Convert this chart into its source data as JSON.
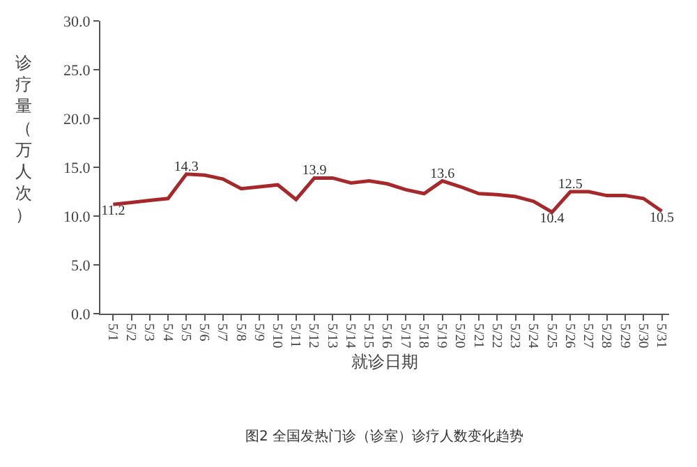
{
  "chart_data": {
    "type": "line",
    "xlabel": "就诊日期",
    "ylabel": "诊疗量（万人次）",
    "categories": [
      "5/1",
      "5/2",
      "5/3",
      "5/4",
      "5/5",
      "5/6",
      "5/7",
      "5/8",
      "5/9",
      "5/10",
      "5/11",
      "5/12",
      "5/13",
      "5/14",
      "5/15",
      "5/16",
      "5/17",
      "5/18",
      "5/19",
      "5/20",
      "5/21",
      "5/22",
      "5/23",
      "5/24",
      "5/25",
      "5/26",
      "5/27",
      "5/28",
      "5/29",
      "5/30",
      "5/31"
    ],
    "series": [
      {
        "color": "#a5282a",
        "values": [
          11.2,
          11.4,
          11.6,
          11.8,
          14.3,
          14.2,
          13.8,
          12.8,
          13.0,
          13.2,
          11.7,
          13.9,
          13.9,
          13.4,
          13.6,
          13.3,
          12.7,
          12.3,
          13.6,
          13.0,
          12.3,
          12.2,
          12.0,
          11.5,
          10.4,
          12.5,
          12.5,
          12.1,
          12.1,
          11.8,
          10.5
        ],
        "value_labels": [
          "11.2",
          null,
          null,
          null,
          "14.3",
          null,
          null,
          null,
          null,
          null,
          null,
          "13.9",
          null,
          null,
          null,
          null,
          null,
          null,
          "13.6",
          null,
          null,
          null,
          null,
          null,
          "10.4",
          "12.5",
          null,
          null,
          null,
          null,
          "10.5"
        ]
      }
    ],
    "ylim": [
      0,
      30
    ],
    "yticks": [
      {
        "value": 0,
        "label": "0.0"
      },
      {
        "value": 5,
        "label": "5.0"
      },
      {
        "value": 10,
        "label": "10.0"
      },
      {
        "value": 15,
        "label": "15.0"
      },
      {
        "value": 20,
        "label": "20.0"
      },
      {
        "value": 25,
        "label": "25.0"
      },
      {
        "value": 30,
        "label": "30.0"
      }
    ],
    "grid": false,
    "legend": false,
    "marker": "none",
    "line_style": "solid",
    "annotations": [
      "图2 全国发热门诊（诊室）诊疗人数变化趋势"
    ]
  }
}
